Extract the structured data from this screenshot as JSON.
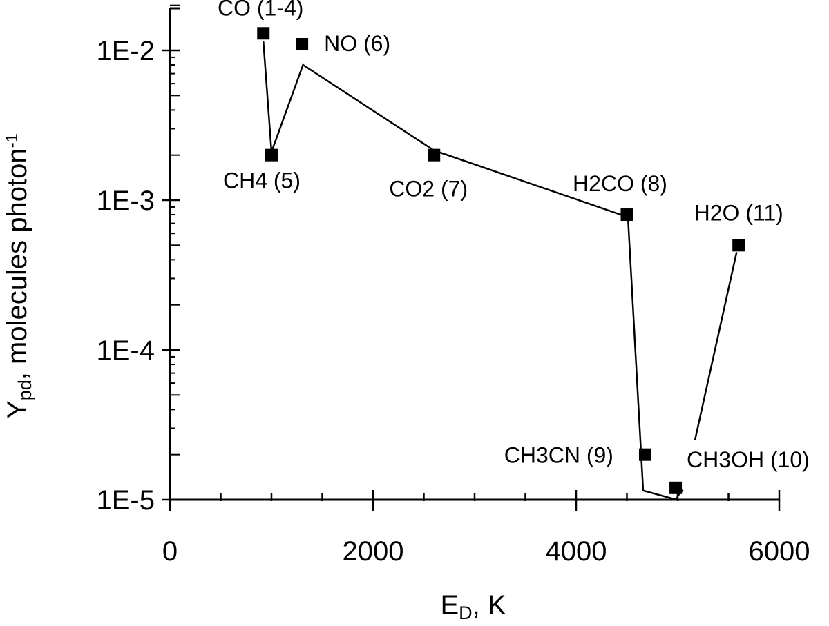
{
  "chart_data": {
    "type": "scatter",
    "x_label": {
      "main": "E",
      "sub": "D",
      "rest": ", K"
    },
    "y_label": {
      "main": "Y",
      "sub": "pd",
      "rest": ", molecules photon",
      "sup": "-1"
    },
    "x_axis": {
      "min": 0,
      "max": 6000,
      "major_ticks": [
        0,
        2000,
        4000,
        6000
      ],
      "minor_step": 500
    },
    "y_axis": {
      "scale": "log",
      "min": 1e-05,
      "max": 0.02,
      "tick_values": [
        1e-05,
        0.0001,
        0.001,
        0.01
      ],
      "tick_labels": [
        "1E-5",
        "1E-4",
        "1E-3",
        "1E-2"
      ]
    },
    "grid": false,
    "points": [
      {
        "label": "CO (1-4)",
        "x": 920,
        "y": 0.013
      },
      {
        "label": "CH4 (5)",
        "x": 1000,
        "y": 0.002
      },
      {
        "label": "NO (6)",
        "x": 1300,
        "y": 0.011
      },
      {
        "label": "CO2 (7)",
        "x": 2600,
        "y": 0.002
      },
      {
        "label": "H2CO (8)",
        "x": 4500,
        "y": 0.0008
      },
      {
        "label": "CH3CN (9)",
        "x": 4680,
        "y": 2e-05
      },
      {
        "label": "CH3OH (10)",
        "x": 4980,
        "y": 1.2e-05
      },
      {
        "label": "H2O (11)",
        "x": 5600,
        "y": 0.0005
      }
    ],
    "fit_line": [
      {
        "x": 920,
        "y": 0.0115
      },
      {
        "x": 1000,
        "y": 0.0021
      },
      {
        "x": 1310,
        "y": 0.008
      },
      {
        "x": 2600,
        "y": 0.00215
      },
      {
        "x": 4510,
        "y": 0.00077
      },
      {
        "x": 4660,
        "y": 1.15e-05
      },
      {
        "x": 4990,
        "y": 1e-05
      },
      {
        "x": 5000,
        "y": 1.06e-05
      },
      {
        "x": 5050,
        "y": 1.16e-05
      }
    ],
    "fit_segment_h2o": [
      {
        "x": 5170,
        "y": 2.5e-05
      },
      {
        "x": 5580,
        "y": 0.00045
      }
    ]
  }
}
